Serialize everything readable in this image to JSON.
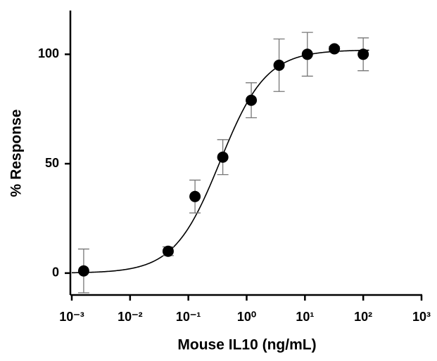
{
  "chart_data": {
    "type": "scatter",
    "x_label": "Mouse IL10 (ng/mL)",
    "y_label": "% Response",
    "x": [
      0.0016,
      0.045,
      0.13,
      0.39,
      1.2,
      3.6,
      11,
      32,
      100
    ],
    "values": [
      1,
      10,
      35,
      53,
      79,
      95,
      100,
      102.5,
      100
    ],
    "errors": [
      10,
      2,
      7.5,
      8,
      8,
      12,
      10,
      1,
      7.5
    ],
    "fit": {
      "bottom": 0,
      "top": 102,
      "ec50": 0.35,
      "hill": 1.1
    },
    "color": "#000000",
    "xscale": "log",
    "xlim": [
      0.001,
      1000
    ],
    "ylim": [
      -10,
      120
    ],
    "xticks": [
      {
        "value": 0.001,
        "label": "10⁻³"
      },
      {
        "value": 0.01,
        "label": "10⁻²"
      },
      {
        "value": 0.1,
        "label": "10⁻¹"
      },
      {
        "value": 1,
        "label": "10⁰"
      },
      {
        "value": 10,
        "label": "10¹"
      },
      {
        "value": 100,
        "label": "10²"
      },
      {
        "value": 1000,
        "label": "10³"
      }
    ],
    "yticks": [
      0,
      50,
      100
    ]
  }
}
